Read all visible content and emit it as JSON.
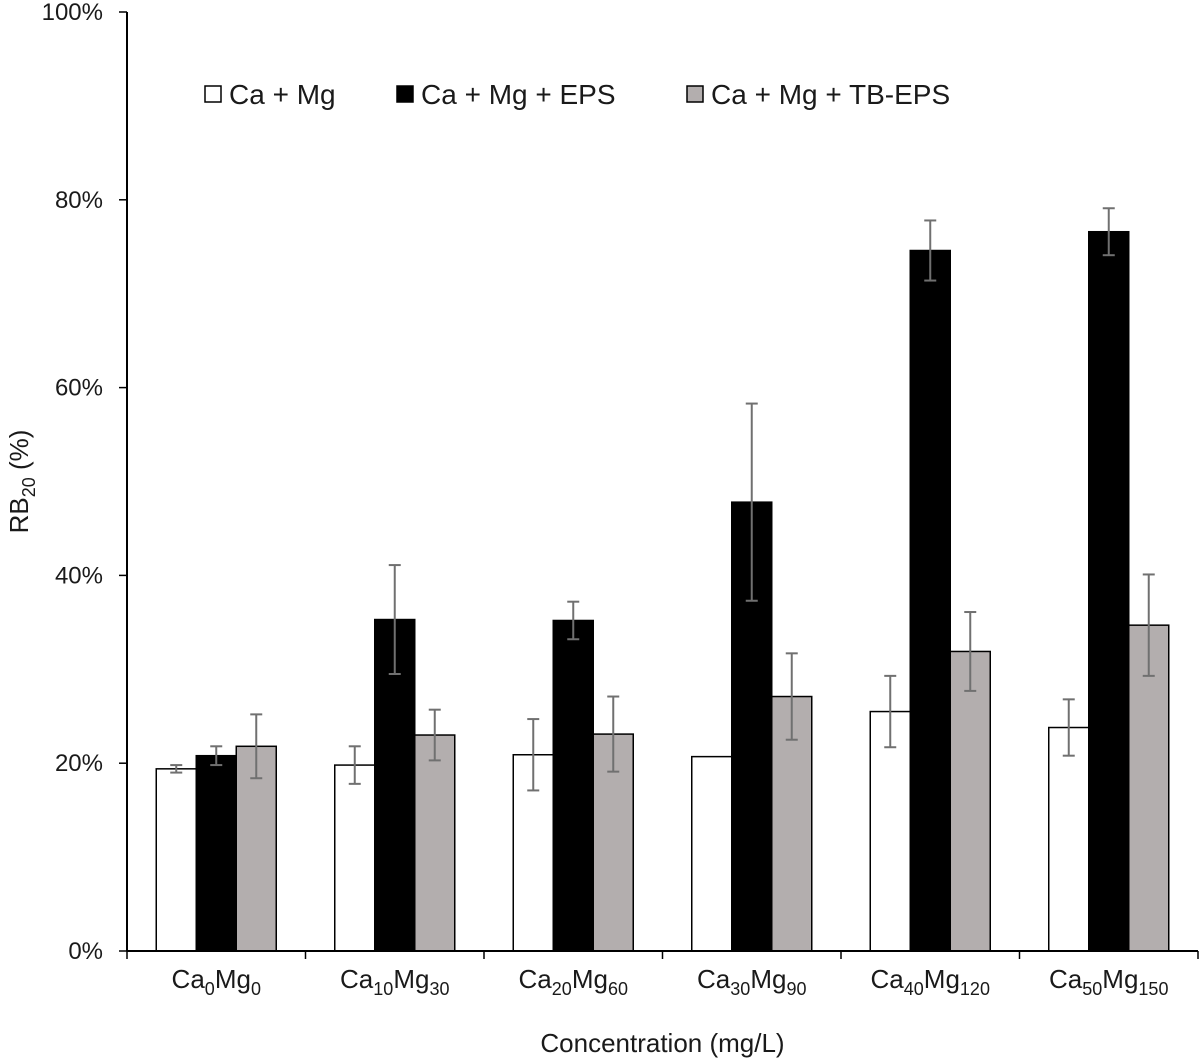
{
  "chart_data": {
    "type": "bar",
    "title": "",
    "xlabel": "Concentration (mg/L)",
    "ylabel": {
      "base": "RB",
      "sub": "20",
      "rest": " (%)"
    },
    "ylim": [
      0,
      100
    ],
    "yticks": [
      0,
      20,
      40,
      60,
      80,
      100
    ],
    "ytick_labels": [
      "0%",
      "20%",
      "40%",
      "60%",
      "80%",
      "100%"
    ],
    "grid": false,
    "legend_position": "top",
    "categories": [
      {
        "label": "Ca0Mg0",
        "parts": [
          [
            "Ca",
            ""
          ],
          [
            "0",
            "sub"
          ],
          [
            "Mg",
            ""
          ],
          [
            "0",
            "sub"
          ]
        ]
      },
      {
        "label": "Ca10Mg30",
        "parts": [
          [
            "Ca",
            ""
          ],
          [
            "10",
            "sub"
          ],
          [
            "Mg",
            ""
          ],
          [
            "30",
            "sub"
          ]
        ]
      },
      {
        "label": "Ca20Mg60",
        "parts": [
          [
            "Ca",
            ""
          ],
          [
            "20",
            "sub"
          ],
          [
            "Mg",
            ""
          ],
          [
            "60",
            "sub"
          ]
        ]
      },
      {
        "label": "Ca30Mg90",
        "parts": [
          [
            "Ca",
            ""
          ],
          [
            "30",
            "sub"
          ],
          [
            "Mg",
            ""
          ],
          [
            "90",
            "sub"
          ]
        ]
      },
      {
        "label": "Ca40Mg120",
        "parts": [
          [
            "Ca",
            ""
          ],
          [
            "40",
            "sub"
          ],
          [
            "Mg",
            ""
          ],
          [
            "120",
            "sub"
          ]
        ]
      },
      {
        "label": "Ca50Mg150",
        "parts": [
          [
            "Ca",
            ""
          ],
          [
            "50",
            "sub"
          ],
          [
            "Mg",
            ""
          ],
          [
            "150",
            "sub"
          ]
        ]
      }
    ],
    "series": [
      {
        "name": "Ca + Mg",
        "color": "#ffffff",
        "values": [
          19.4,
          19.8,
          20.9,
          20.7,
          25.5,
          23.8
        ],
        "errors": [
          0.4,
          2.0,
          3.8,
          0.0,
          3.8,
          3.0
        ]
      },
      {
        "name": "Ca + Mg + EPS",
        "color": "#000000",
        "values": [
          20.8,
          35.3,
          35.2,
          47.8,
          74.6,
          76.6
        ],
        "errors": [
          1.0,
          5.8,
          2.0,
          10.5,
          3.2,
          2.5
        ]
      },
      {
        "name": "Ca + Mg + TB-EPS",
        "color": "#b3aeae",
        "values": [
          21.8,
          23.0,
          23.1,
          27.1,
          31.9,
          34.7
        ],
        "errors": [
          3.4,
          2.7,
          4.0,
          4.6,
          4.2,
          5.4
        ]
      }
    ]
  }
}
